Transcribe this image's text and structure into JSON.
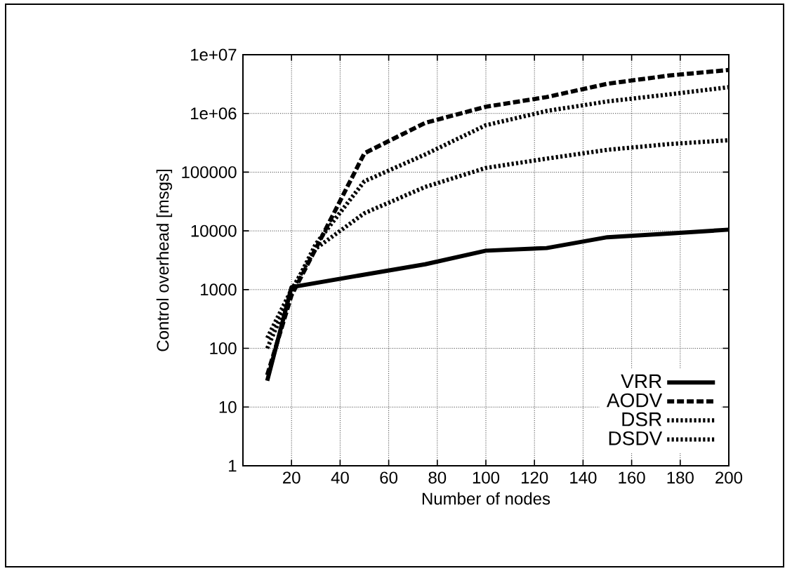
{
  "chart_data": {
    "type": "line",
    "xlabel": "Number of nodes",
    "ylabel": "Control overhead [msgs]",
    "x": [
      10,
      20,
      30,
      50,
      75,
      100,
      125,
      150,
      175,
      200
    ],
    "series": [
      {
        "name": "VRR",
        "color": "#000000",
        "line_style": "solid",
        "x": [
          10,
          20,
          50,
          75,
          100,
          125,
          150,
          175,
          200
        ],
        "values": [
          28,
          1100,
          1800,
          2700,
          4600,
          5100,
          7800,
          9000,
          10500
        ]
      },
      {
        "name": "AODV",
        "color": "#000000",
        "line_style": "dashed",
        "values": [
          35,
          800,
          5000,
          210000,
          690000,
          1300000,
          1900000,
          3200000,
          4400000,
          5500000
        ]
      },
      {
        "name": "DSR",
        "color": "#000000",
        "line_style": "dotted",
        "values": [
          100,
          900,
          6000,
          70000,
          200000,
          630000,
          1100000,
          1600000,
          2100000,
          2800000
        ]
      },
      {
        "name": "DSDV",
        "color": "#000000",
        "line_style": "dotted",
        "values": [
          150,
          1000,
          5000,
          20000,
          56000,
          118000,
          170000,
          240000,
          300000,
          350000
        ]
      }
    ],
    "xlim": [
      0,
      200
    ],
    "xticks": [
      20,
      40,
      60,
      80,
      100,
      120,
      140,
      160,
      180,
      200
    ],
    "ylim": [
      1,
      10000000
    ],
    "log": "y",
    "yticks": [
      1,
      10,
      100,
      1000,
      10000,
      100000,
      {
        "value": 1000000,
        "label": "1e+06"
      },
      {
        "value": 10000000,
        "label": "1e+07"
      }
    ],
    "grid": true,
    "legend": "bottom right",
    "marker": "none"
  }
}
